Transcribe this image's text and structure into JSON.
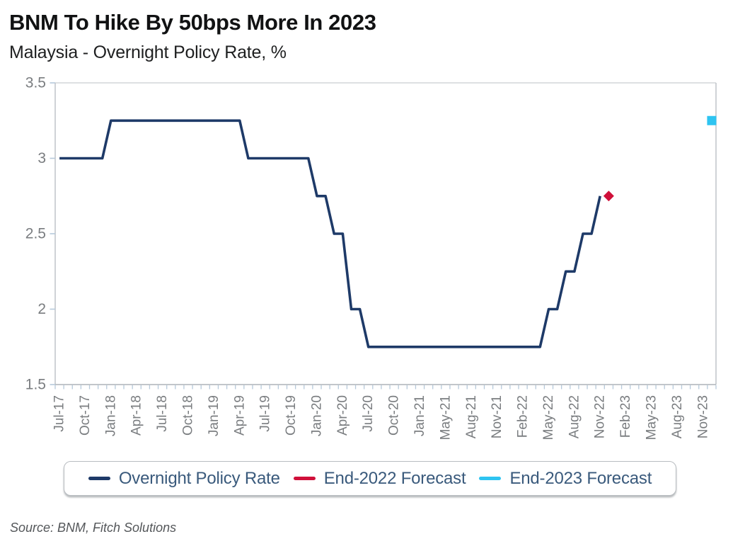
{
  "page": {
    "title": "BNM To Hike By 50bps More In 2023",
    "subtitle": "Malaysia - Overnight Policy Rate, %",
    "source": "Source: BNM, Fitch Solutions"
  },
  "legend": {
    "items": [
      {
        "label": "Overnight Policy Rate",
        "color": "#1E3A68"
      },
      {
        "label": "End-2022 Forecast",
        "color": "#D0103A"
      },
      {
        "label": "End-2023 Forecast",
        "color": "#2EC4F1"
      }
    ]
  },
  "colors": {
    "line": "#1E3A68",
    "end_2022_marker": "#D0103A",
    "end_2023_marker": "#2EC4F1",
    "axis_top": "#d2d5d8",
    "axis_side": "#c3c7cb",
    "axis_bottom": "#adb3b8",
    "tick": "#b6c9da",
    "tick_label": "#7a7d80"
  },
  "chart_data": {
    "type": "line",
    "title": "BNM To Hike By 50bps More In 2023",
    "subtitle": "Malaysia - Overnight Policy Rate, %",
    "xlabel": "",
    "ylabel": "%",
    "ylim": [
      1.5,
      3.5
    ],
    "grid": false,
    "legend_position": "bottom",
    "yticks": [
      {
        "value": 3.5,
        "label": "3.5"
      },
      {
        "value": 3.0,
        "label": "3"
      },
      {
        "value": 2.5,
        "label": "2.5"
      },
      {
        "value": 2.0,
        "label": "2"
      },
      {
        "value": 1.5,
        "label": "1.5"
      }
    ],
    "x_tick_every": 3,
    "categories": [
      "Jul-17",
      "Aug-17",
      "Sep-17",
      "Oct-17",
      "Nov-17",
      "Dec-17",
      "Jan-18",
      "Feb-18",
      "Mar-18",
      "Apr-18",
      "May-18",
      "Jun-18",
      "Jul-18",
      "Aug-18",
      "Sep-18",
      "Oct-18",
      "Nov-18",
      "Dec-18",
      "Jan-19",
      "Feb-19",
      "Mar-19",
      "Apr-19",
      "May-19",
      "Jun-19",
      "Jul-19",
      "Aug-19",
      "Sep-19",
      "Oct-19",
      "Nov-19",
      "Dec-19",
      "Jan-20",
      "Feb-20",
      "Mar-20",
      "Apr-20",
      "May-20",
      "Jun-20",
      "Jul-20",
      "Aug-20",
      "Sep-20",
      "Oct-20",
      "Nov-20",
      "Dec-20",
      "Jan-21",
      "Mar-21",
      "Apr-21",
      "May-21",
      "Jun-21",
      "Jul-21",
      "Aug-21",
      "Sep-21",
      "Oct-21",
      "Nov-21",
      "Dec-21",
      "Jan-22",
      "Feb-22",
      "Mar-22",
      "Apr-22",
      "May-22",
      "Jun-22",
      "Jul-22",
      "Aug-22",
      "Sep-22",
      "Oct-22",
      "Nov-22",
      "Dec-22",
      "Jan-23",
      "Feb-23",
      "Mar-23",
      "Apr-23",
      "May-23",
      "Jun-23",
      "Jul-23",
      "Aug-23",
      "Sep-23",
      "Oct-23",
      "Nov-23",
      "Dec-23"
    ],
    "series": [
      {
        "name": "Overnight Policy Rate",
        "color": "#1E3A68",
        "values": [
          3.0,
          3.0,
          3.0,
          3.0,
          3.0,
          3.0,
          3.25,
          3.25,
          3.25,
          3.25,
          3.25,
          3.25,
          3.25,
          3.25,
          3.25,
          3.25,
          3.25,
          3.25,
          3.25,
          3.25,
          3.25,
          3.25,
          3.0,
          3.0,
          3.0,
          3.0,
          3.0,
          3.0,
          3.0,
          3.0,
          2.75,
          2.75,
          2.5,
          2.5,
          2.0,
          2.0,
          1.75,
          1.75,
          1.75,
          1.75,
          1.75,
          1.75,
          1.75,
          1.75,
          1.75,
          1.75,
          1.75,
          1.75,
          1.75,
          1.75,
          1.75,
          1.75,
          1.75,
          1.75,
          1.75,
          1.75,
          1.75,
          2.0,
          2.0,
          2.25,
          2.25,
          2.5,
          2.5,
          2.75
        ]
      }
    ],
    "forecast_points": [
      {
        "name": "End-2022 Forecast",
        "month": "Dec-22",
        "value": 2.75,
        "marker": "diamond",
        "color": "#D0103A"
      },
      {
        "name": "End-2023 Forecast",
        "month": "Dec-23",
        "value": 3.25,
        "marker": "square",
        "color": "#2EC4F1"
      }
    ]
  }
}
